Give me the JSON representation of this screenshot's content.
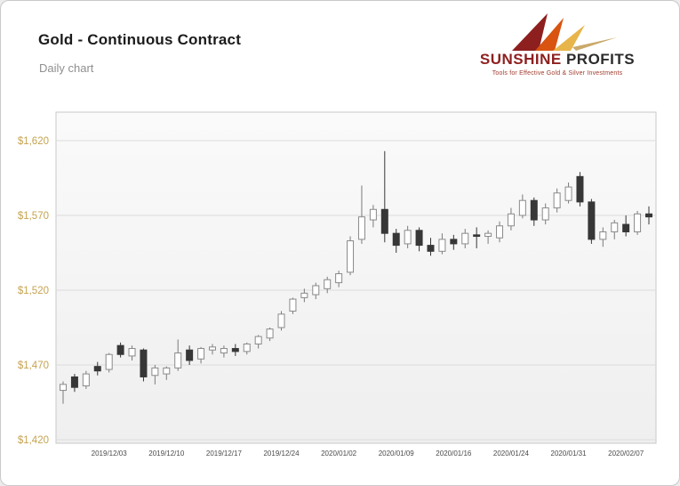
{
  "header": {
    "title": "Gold - Continuous Contract",
    "subtitle": "Daily chart"
  },
  "logo": {
    "name_primary": "SUNSHINE",
    "name_secondary": "PROFITS",
    "tagline": "Tools for Effective Gold & Silver Investments",
    "colors": {
      "dark_red": "#8e1f1f",
      "orange": "#d85410",
      "gold": "#e7b54a",
      "tagline_red": "#a03c2e"
    }
  },
  "chart_data": {
    "type": "candlestick",
    "title": "Gold - Continuous Contract",
    "subtitle": "Daily chart",
    "grid": "horizontal-only",
    "y_axis": {
      "min": 1420,
      "max": 1620,
      "tick_step": 50,
      "color": "#c6a350",
      "ticks": [
        {
          "value": 1620,
          "label": "$1,620"
        },
        {
          "value": 1570,
          "label": "$1,570"
        },
        {
          "value": 1520,
          "label": "$1,520"
        },
        {
          "value": 1470,
          "label": "$1,470"
        },
        {
          "value": 1420,
          "label": "$1,420"
        }
      ]
    },
    "x_axis": {
      "tick_labels": [
        "2019/12/03",
        "2019/12/10",
        "2019/12/17",
        "2019/12/24",
        "2020/01/02",
        "2020/01/09",
        "2020/01/16",
        "2020/01/24",
        "2020/01/31",
        "2020/02/07"
      ],
      "color": "#4a4a4a"
    },
    "candle_format": [
      "date",
      "open",
      "high",
      "low",
      "close"
    ],
    "candles": [
      [
        "2019/11/26",
        1453,
        1459,
        1444,
        1457
      ],
      [
        "2019/11/27",
        1462,
        1464,
        1452,
        1455
      ],
      [
        "2019/11/29",
        1456,
        1466,
        1454,
        1464
      ],
      [
        "2019/12/02",
        1469,
        1472,
        1463,
        1466
      ],
      [
        "2019/12/03",
        1467,
        1478,
        1465,
        1477
      ],
      [
        "2019/12/04",
        1483,
        1485,
        1475,
        1477
      ],
      [
        "2019/12/05",
        1476,
        1483,
        1473,
        1481
      ],
      [
        "2019/12/06",
        1480,
        1481,
        1459,
        1462
      ],
      [
        "2019/12/09",
        1463,
        1470,
        1457,
        1468
      ],
      [
        "2019/12/10",
        1464,
        1469,
        1460,
        1468
      ],
      [
        "2019/12/11",
        1468,
        1487,
        1466,
        1478
      ],
      [
        "2019/12/12",
        1480,
        1483,
        1470,
        1473
      ],
      [
        "2019/12/13",
        1474,
        1482,
        1471,
        1481
      ],
      [
        "2019/12/16",
        1480,
        1484,
        1477,
        1482
      ],
      [
        "2019/12/17",
        1478,
        1483,
        1475,
        1481
      ],
      [
        "2019/12/18",
        1481,
        1484,
        1476,
        1479
      ],
      [
        "2019/12/19",
        1479,
        1485,
        1477,
        1484
      ],
      [
        "2019/12/20",
        1484,
        1490,
        1481,
        1489
      ],
      [
        "2019/12/23",
        1488,
        1495,
        1486,
        1494
      ],
      [
        "2019/12/24",
        1495,
        1506,
        1493,
        1504
      ],
      [
        "2019/12/26",
        1506,
        1515,
        1504,
        1514
      ],
      [
        "2019/12/27",
        1515,
        1521,
        1512,
        1518
      ],
      [
        "2019/12/30",
        1517,
        1525,
        1514,
        1523
      ],
      [
        "2019/12/31",
        1521,
        1529,
        1518,
        1527
      ],
      [
        "2020/01/02",
        1525,
        1533,
        1522,
        1531
      ],
      [
        "2020/01/03",
        1532,
        1556,
        1530,
        1553
      ],
      [
        "2020/01/06",
        1554,
        1590,
        1551,
        1569
      ],
      [
        "2020/01/07",
        1567,
        1577,
        1562,
        1574
      ],
      [
        "2020/01/08",
        1574,
        1613,
        1552,
        1558
      ],
      [
        "2020/01/09",
        1558,
        1561,
        1545,
        1550
      ],
      [
        "2020/01/10",
        1551,
        1563,
        1548,
        1560
      ],
      [
        "2020/01/13",
        1560,
        1562,
        1546,
        1550
      ],
      [
        "2020/01/14",
        1550,
        1555,
        1543,
        1546
      ],
      [
        "2020/01/15",
        1546,
        1558,
        1544,
        1554
      ],
      [
        "2020/01/16",
        1554,
        1557,
        1547,
        1551
      ],
      [
        "2020/01/17",
        1551,
        1561,
        1548,
        1558
      ],
      [
        "2020/01/21",
        1557,
        1562,
        1548,
        1556
      ],
      [
        "2020/01/22",
        1556,
        1560,
        1551,
        1558
      ],
      [
        "2020/01/23",
        1555,
        1566,
        1552,
        1563
      ],
      [
        "2020/01/24",
        1563,
        1575,
        1560,
        1571
      ],
      [
        "2020/01/27",
        1570,
        1584,
        1568,
        1580
      ],
      [
        "2020/01/28",
        1580,
        1582,
        1563,
        1567
      ],
      [
        "2020/01/29",
        1567,
        1578,
        1564,
        1575
      ],
      [
        "2020/01/30",
        1575,
        1588,
        1572,
        1585
      ],
      [
        "2020/01/31",
        1580,
        1592,
        1578,
        1589
      ],
      [
        "2020/02/03",
        1596,
        1599,
        1576,
        1579
      ],
      [
        "2020/02/04",
        1579,
        1581,
        1551,
        1554
      ],
      [
        "2020/02/05",
        1554,
        1562,
        1549,
        1559
      ],
      [
        "2020/02/06",
        1559,
        1567,
        1554,
        1565
      ],
      [
        "2020/02/07",
        1564,
        1570,
        1556,
        1559
      ],
      [
        "2020/02/10",
        1559,
        1573,
        1557,
        1571
      ],
      [
        "2020/02/11",
        1571,
        1576,
        1564,
        1569
      ]
    ],
    "colors": {
      "up_fill": "#ffffff",
      "up_stroke": "#8a8a8a",
      "up_wick": "#7a7a7a",
      "down_fill": "#373737",
      "grid": "#dcdcdc",
      "plot_border": "#c9c9c9",
      "plot_bg_top": "#fafafa",
      "plot_bg_bottom": "#efefef"
    },
    "legend": "none"
  }
}
